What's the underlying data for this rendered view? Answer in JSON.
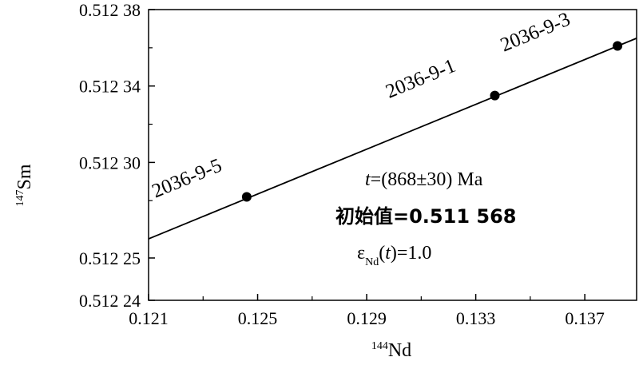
{
  "chart_data": {
    "type": "scatter",
    "xlabel_sup": "144",
    "xlabel_main": "Nd",
    "ylabel_sup": "147",
    "ylabel_main": "Sm",
    "xlim": [
      0.121,
      0.1389
    ],
    "ylim": [
      0.51224,
      0.51238
    ],
    "x_ticks": [
      {
        "value": 0.121,
        "label": "0.121"
      },
      {
        "value": 0.125,
        "label": "0.125"
      },
      {
        "value": 0.129,
        "label": "0.129"
      },
      {
        "value": 0.133,
        "label": "0.133"
      },
      {
        "value": 0.137,
        "label": "0.137"
      }
    ],
    "y_ticks": [
      {
        "value": 0.51224,
        "label": "0.512 24"
      },
      {
        "value": 0.51225,
        "label": "0.512 25"
      },
      {
        "value": 0.5123,
        "label": "0.512 30"
      },
      {
        "value": 0.51234,
        "label": "0.512 34"
      },
      {
        "value": 0.51238,
        "label": "0.512 38"
      }
    ],
    "points": [
      {
        "label": "2036-9-5",
        "x": 0.1246,
        "y": 0.512282
      },
      {
        "label": "2036-9-1",
        "x": 0.1337,
        "y": 0.512335
      },
      {
        "label": "2036-9-3",
        "x": 0.1382,
        "y": 0.512361
      }
    ],
    "fit_line": {
      "x": [
        0.121,
        0.1389
      ],
      "y": [
        0.51226,
        0.512365
      ]
    },
    "annotations": {
      "age_italic": "t",
      "age_rest": "=(868±30) Ma",
      "initial": "初始值=0.511 568",
      "eps_main": "ε",
      "eps_sub": "Nd",
      "eps_open": "(",
      "eps_t": "t",
      "eps_close": ")=1.0"
    },
    "grid": false
  }
}
